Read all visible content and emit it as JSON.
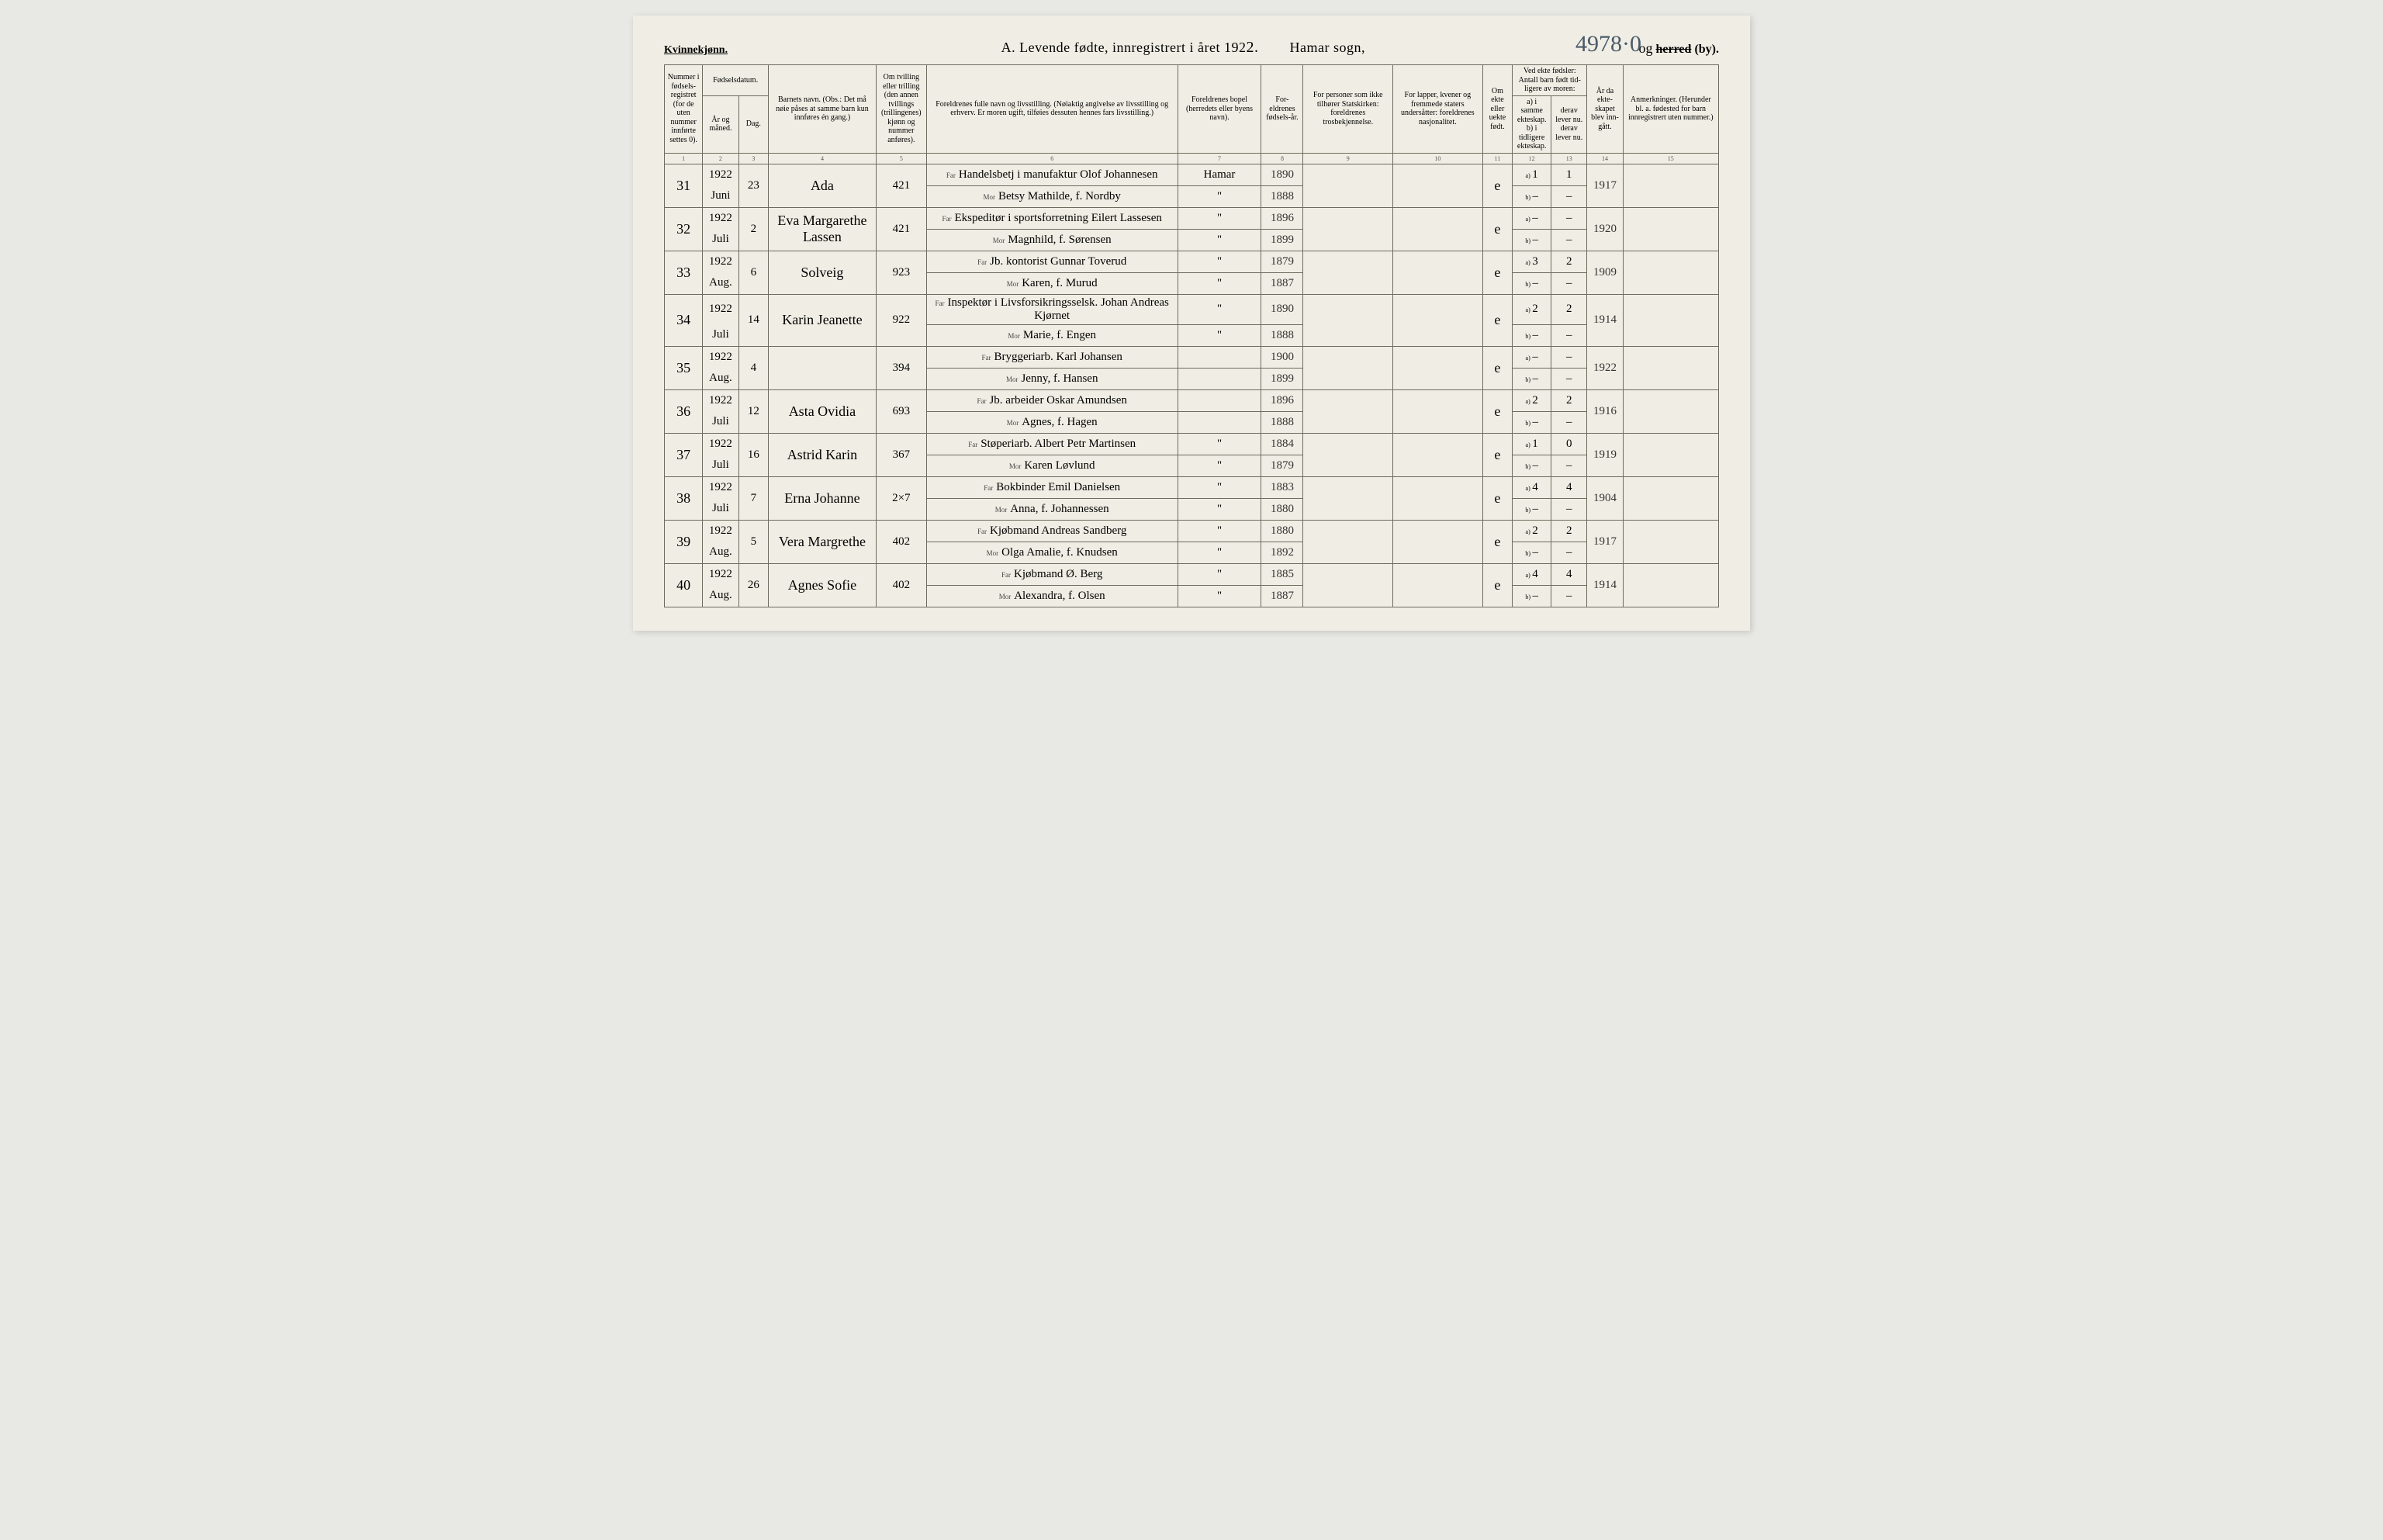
{
  "page_number_hand": "4978·0",
  "header": {
    "left": "Kvinnekjønn.",
    "title_prefix": "A.  Levende fødte, innregistrert i året 192",
    "title_year_suffix": "2.",
    "sogn_hand": "Hamar",
    "sogn_label": "sogn,",
    "herred_prefix": "og",
    "herred_struck": "herred",
    "herred_suffix": "(by)."
  },
  "columns": {
    "1": "Nummer i fødsels-registret (for de uten nummer innførte settes 0).",
    "2_3_group": "Fødselsdatum.",
    "2": "År og måned.",
    "3": "Dag.",
    "4": "Barnets navn.\n(Obs.: Det må nøie påses at samme barn kun innføres én gang.)",
    "5": "Om tvilling eller trilling (den annen tvillings (trillingenes) kjønn og nummer anføres).",
    "6": "Foreldrenes fulle navn og livsstilling.\n(Nøiaktig angivelse av livsstilling og erhverv. Er moren ugift, tilføies dessuten hennes fars livsstilling.)",
    "7": "Foreldrenes bopel (herredets eller byens navn).",
    "8": "For-eldrenes fødsels-år.",
    "9": "For personer som ikke tilhører Statskirken: foreldrenes trosbekjennelse.",
    "10": "For lapper, kvener og fremmede staters undersåtter: foreldrenes nasjonalitet.",
    "11": "Om ekte eller uekte født.",
    "12_13_group": "Ved ekte fødsler:\nAntall barn født tid-ligere av moren:",
    "12": "a) i samme ekteskap.\nb) i tidligere ekteskap.",
    "13": "derav lever nu.\nderav lever nu.",
    "14": "År da ekte-skapet blev inn-gått.",
    "15": "Anmerkninger.\n(Herunder bl. a. fødested for barn innregistrert uten nummer.)"
  },
  "colnums": [
    "1",
    "2",
    "3",
    "4",
    "5",
    "6",
    "7",
    "8",
    "9",
    "10",
    "11",
    "12",
    "13",
    "14",
    "15"
  ],
  "rows": [
    {
      "num": "31",
      "year": "1922",
      "month": "Juni",
      "day": "23",
      "name": "Ada",
      "twin": "421",
      "far": "Handelsbetj i manufaktur  Olof Johannesen",
      "mor": "Betsy Mathilde, f. Nordby",
      "bopel_far": "Hamar",
      "bopel_mor": "\"",
      "byr_far": "1890",
      "byr_mor": "1888",
      "ekte": "e",
      "a_same": "1",
      "a_lever": "1",
      "b_same": "–",
      "b_lever": "–",
      "marr": "1917"
    },
    {
      "num": "32",
      "year": "1922",
      "month": "Juli",
      "day": "2",
      "name": "Eva Margarethe Lassen",
      "twin": "421",
      "far": "Ekspeditør i sportsforretning  Eilert Lassesen",
      "mor": "Magnhild, f. Sørensen",
      "bopel_far": "\"",
      "bopel_mor": "\"",
      "byr_far": "1896",
      "byr_mor": "1899",
      "ekte": "e",
      "a_same": "–",
      "a_lever": "–",
      "b_same": "–",
      "b_lever": "–",
      "marr": "1920"
    },
    {
      "num": "33",
      "year": "1922",
      "month": "Aug.",
      "day": "6",
      "name": "Solveig",
      "twin": "923",
      "far": "Jb. kontorist  Gunnar Toverud",
      "mor": "Karen, f. Murud",
      "bopel_far": "\"",
      "bopel_mor": "\"",
      "byr_far": "1879",
      "byr_mor": "1887",
      "ekte": "e",
      "a_same": "3",
      "a_lever": "2",
      "b_same": "–",
      "b_lever": "–",
      "marr": "1909"
    },
    {
      "num": "34",
      "year": "1922",
      "month": "Juli",
      "day": "14",
      "name": "Karin Jeanette",
      "twin": "922",
      "far": "Inspektør i Livsforsikringsselsk.  Johan Andreas Kjørnet",
      "mor": "Marie, f. Engen",
      "bopel_far": "\"",
      "bopel_mor": "\"",
      "byr_far": "1890",
      "byr_mor": "1888",
      "ekte": "e",
      "a_same": "2",
      "a_lever": "2",
      "b_same": "–",
      "b_lever": "–",
      "marr": "1914"
    },
    {
      "num": "35",
      "year": "1922",
      "month": "Aug.",
      "day": "4",
      "name": "",
      "twin": "394",
      "far": "Bryggeriarb.  Karl Johansen",
      "mor": "Jenny, f. Hansen",
      "bopel_far": "",
      "bopel_mor": "",
      "byr_far": "1900",
      "byr_mor": "1899",
      "ekte": "e",
      "a_same": "–",
      "a_lever": "–",
      "b_same": "–",
      "b_lever": "–",
      "marr": "1922"
    },
    {
      "num": "36",
      "year": "1922",
      "month": "Juli",
      "day": "12",
      "name": "Asta Ovidia",
      "twin": "693",
      "far": "Jb. arbeider  Oskar Amundsen",
      "mor": "Agnes, f. Hagen",
      "bopel_far": "",
      "bopel_mor": "",
      "byr_far": "1896",
      "byr_mor": "1888",
      "ekte": "e",
      "a_same": "2",
      "a_lever": "2",
      "b_same": "–",
      "b_lever": "–",
      "marr": "1916"
    },
    {
      "num": "37",
      "year": "1922",
      "month": "Juli",
      "day": "16",
      "name": "Astrid Karin",
      "twin": "367",
      "far": "Støperiarb.  Albert Petr Martinsen",
      "mor": "Karen Løvlund",
      "bopel_far": "\"",
      "bopel_mor": "\"",
      "byr_far": "1884",
      "byr_mor": "1879",
      "ekte": "e",
      "a_same": "1",
      "a_lever": "0",
      "b_same": "–",
      "b_lever": "–",
      "marr": "1919"
    },
    {
      "num": "38",
      "year": "1922",
      "month": "Juli",
      "day": "7",
      "name": "Erna Johanne",
      "twin": "2×7",
      "far": "Bokbinder  Emil Danielsen",
      "mor": "Anna, f. Johannessen",
      "bopel_far": "\"",
      "bopel_mor": "\"",
      "byr_far": "1883",
      "byr_mor": "1880",
      "ekte": "e",
      "a_same": "4",
      "a_lever": "4",
      "b_same": "–",
      "b_lever": "–",
      "marr": "1904"
    },
    {
      "num": "39",
      "year": "1922",
      "month": "Aug.",
      "day": "5",
      "name": "Vera Margrethe",
      "twin": "402",
      "far": "Kjøbmand  Andreas Sandberg",
      "mor": "Olga Amalie, f. Knudsen",
      "bopel_far": "\"",
      "bopel_mor": "\"",
      "byr_far": "1880",
      "byr_mor": "1892",
      "ekte": "e",
      "a_same": "2",
      "a_lever": "2",
      "b_same": "–",
      "b_lever": "–",
      "marr": "1917"
    },
    {
      "num": "40",
      "year": "1922",
      "month": "Aug.",
      "day": "26",
      "name": "Agnes Sofie",
      "twin": "402",
      "far": "Kjøbmand  Ø. Berg",
      "mor": "Alexandra, f. Olsen",
      "bopel_far": "\"",
      "bopel_mor": "\"",
      "byr_far": "1885",
      "byr_mor": "1887",
      "ekte": "e",
      "a_same": "4",
      "a_lever": "4",
      "b_same": "–",
      "b_lever": "–",
      "marr": "1914"
    }
  ],
  "labels": {
    "far": "Far",
    "mor": "Mor",
    "a": "a)",
    "b": "b)"
  },
  "styling": {
    "page_bg": "#f0eee4",
    "body_bg": "#e8e8e4",
    "border_color": "#6b6b5e",
    "handwriting_color": "#2a2a2a",
    "header_font_size_pt": 14,
    "title_font_size_pt": 18,
    "table_font_size_pt": 10,
    "handwritten_family": "Brush Script MT, cursive"
  }
}
